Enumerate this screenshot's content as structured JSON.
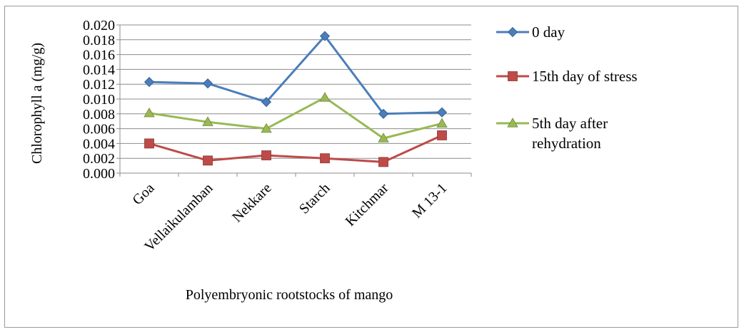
{
  "chart_data": {
    "type": "line",
    "title": "",
    "xlabel": "Polyembryonic rootstocks of mango",
    "ylabel": "Chlorophyll a (mg/g)",
    "ylim": [
      0,
      0.02
    ],
    "ytick_step": 0.002,
    "ytick_decimals": 3,
    "grid": "horizontal",
    "legend_position": "right",
    "categories": [
      "Goa",
      "Vellaikulamban",
      "Nekkare",
      "Starch",
      "Kitchmar",
      "M 13-1"
    ],
    "series": [
      {
        "name": "0 day",
        "color": "#4a7ebb",
        "marker": "diamond",
        "values": [
          0.0123,
          0.0121,
          0.0096,
          0.0185,
          0.008,
          0.0082
        ]
      },
      {
        "name": "15th day of stress",
        "color": "#be4b48",
        "marker": "square",
        "values": [
          0.004,
          0.0017,
          0.0024,
          0.002,
          0.0015,
          0.0051
        ]
      },
      {
        "name": "5th day after rehydration",
        "legend_lines": [
          "5th day after",
          "rehydration"
        ],
        "color": "#98b954",
        "marker": "triangle",
        "values": [
          0.0081,
          0.0069,
          0.006,
          0.0102,
          0.0047,
          0.0067
        ]
      }
    ]
  }
}
